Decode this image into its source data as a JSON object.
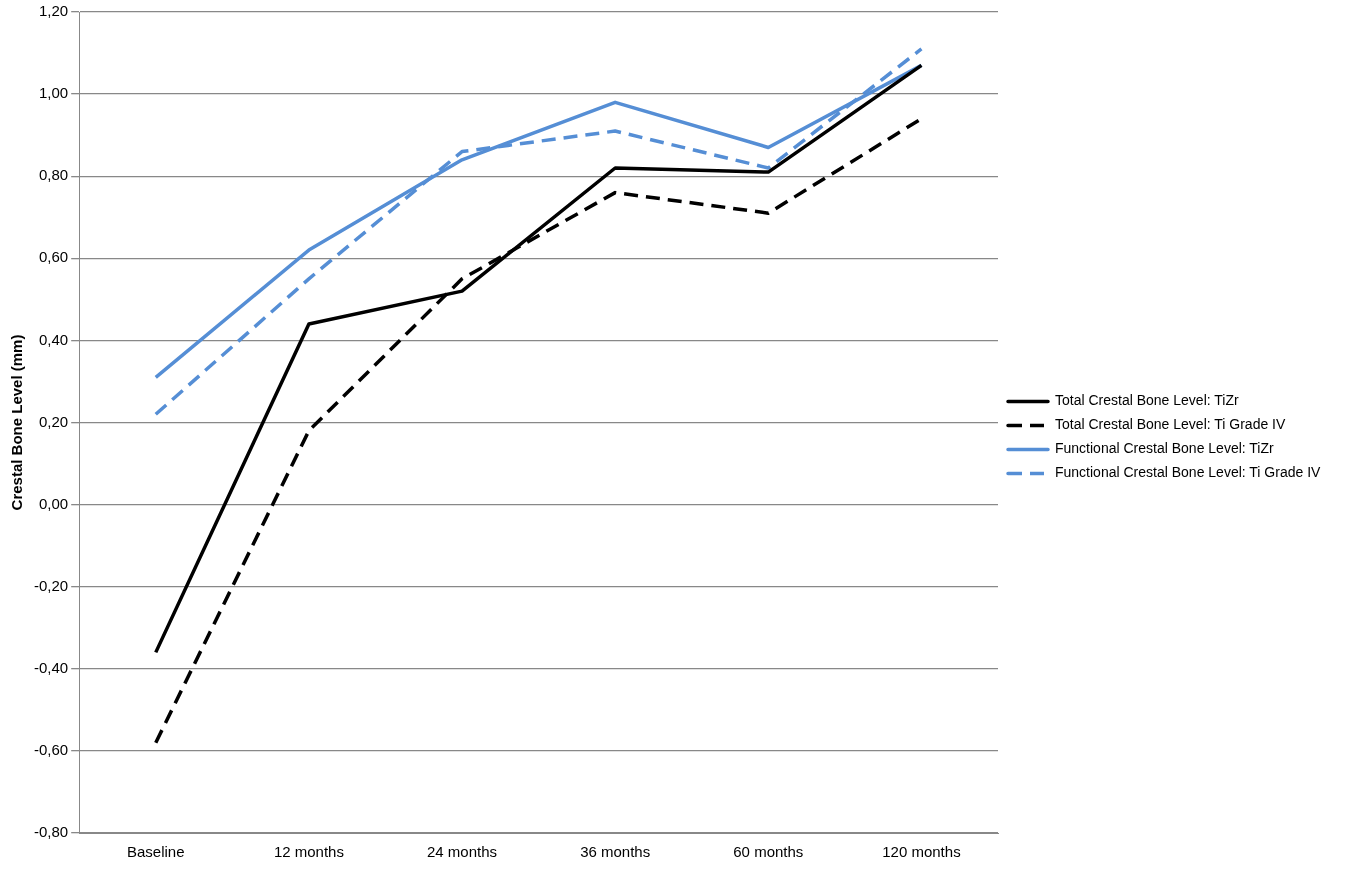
{
  "chart_data": {
    "type": "line",
    "ylabel": "Crestal Bone Level (mm)",
    "categories": [
      "Baseline",
      "12 months",
      "24 months",
      "36 months",
      "60 months",
      "120 months"
    ],
    "series": [
      {
        "name": "Total Crestal Bone Level: TiZr",
        "color": "#000000",
        "line_style": "solid",
        "values": [
          -0.36,
          0.44,
          0.52,
          0.82,
          0.81,
          1.07
        ]
      },
      {
        "name": "Total Crestal Bone Level: Ti Grade IV",
        "color": "#000000",
        "line_style": "dashed",
        "values": [
          -0.58,
          0.18,
          0.55,
          0.76,
          0.71,
          0.94
        ]
      },
      {
        "name": "Functional Crestal Bone Level: TiZr",
        "color": "#558ed5",
        "line_style": "solid",
        "values": [
          0.31,
          0.62,
          0.84,
          0.98,
          0.87,
          1.07
        ]
      },
      {
        "name": "Functional Crestal Bone Level: Ti Grade IV",
        "color": "#558ed5",
        "line_style": "dashed",
        "values": [
          0.22,
          0.55,
          0.86,
          0.91,
          0.82,
          1.11
        ]
      }
    ],
    "ylim": [
      -0.8,
      1.2
    ],
    "yticks": [
      {
        "value": -0.8,
        "label": "-0,80"
      },
      {
        "value": -0.6,
        "label": "-0,60"
      },
      {
        "value": -0.4,
        "label": "-0,40"
      },
      {
        "value": -0.2,
        "label": "-0,20"
      },
      {
        "value": 0,
        "label": "0,00"
      },
      {
        "value": 0.2,
        "label": "0,20"
      },
      {
        "value": 0.4,
        "label": "0,40"
      },
      {
        "value": 0.6,
        "label": "0,60"
      },
      {
        "value": 0.8,
        "label": "0,80"
      },
      {
        "value": 1.0,
        "label": "1,00"
      },
      {
        "value": 1.2,
        "label": "1,20"
      }
    ],
    "grid": "y",
    "legend": "right",
    "marker": "none"
  }
}
